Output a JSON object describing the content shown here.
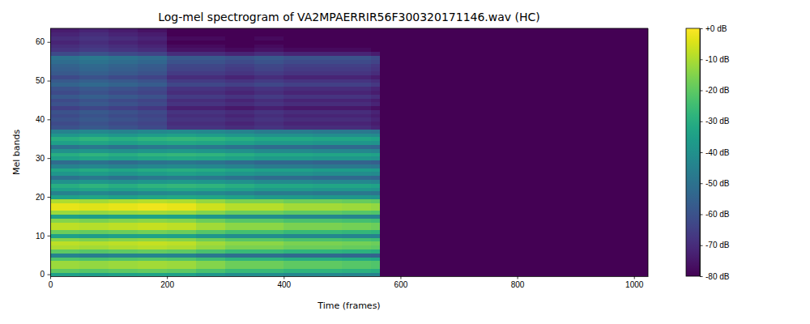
{
  "chart_data": {
    "type": "heatmap",
    "title": "Log-mel spectrogram of VA2MPAERRIR56F300320171146.wav (HC)",
    "x_label": "Time (frames)",
    "y_label": "Mel bands",
    "color": "viridis",
    "xlim": [
      0,
      1024
    ],
    "ylim": [
      -0.5,
      63.5
    ],
    "xticks": [
      0,
      200,
      400,
      600,
      800,
      1000
    ],
    "yticks": [
      0,
      10,
      20,
      30,
      40,
      50,
      60
    ],
    "x_edges": [
      0,
      50,
      100,
      150,
      200,
      250,
      300,
      350,
      400,
      450,
      500,
      550,
      565,
      1024
    ],
    "y_edges": [
      -0.5,
      0.5,
      1.5,
      2.5,
      3.5,
      4.5,
      5.5,
      6.5,
      7.5,
      8.5,
      9.5,
      10.5,
      11.5,
      12.5,
      13.5,
      14.5,
      15.5,
      16.5,
      17.5,
      18.5,
      19.5,
      20.5,
      21.5,
      22.5,
      23.5,
      24.5,
      25.5,
      26.5,
      27.5,
      28.5,
      29.5,
      30.5,
      31.5,
      32.5,
      33.5,
      34.5,
      35.5,
      36.5,
      37.5,
      38.5,
      39.5,
      40.5,
      41.5,
      42.5,
      43.5,
      44.5,
      45.5,
      46.5,
      47.5,
      48.5,
      49.5,
      50.5,
      51.5,
      52.5,
      53.5,
      54.5,
      55.5,
      56.5,
      57.5,
      58.5,
      59.5,
      60.5,
      61.5,
      62.5,
      63.5
    ],
    "cells": [
      [
        -35,
        -36,
        -35,
        -34,
        -35,
        -38,
        -41,
        -41,
        -43,
        -43,
        -44,
        -45,
        -80
      ],
      [
        -20,
        -21,
        -20,
        -19,
        -20,
        -23,
        -26,
        -26,
        -28,
        -28,
        -29,
        -30,
        -80
      ],
      [
        -12,
        -13,
        -12,
        -11,
        -12,
        -15,
        -18,
        -18,
        -20,
        -20,
        -21,
        -22,
        -80
      ],
      [
        -12,
        -13,
        -12,
        -11,
        -12,
        -15,
        -18,
        -18,
        -20,
        -20,
        -21,
        -22,
        -80
      ],
      [
        -22,
        -23,
        -22,
        -21,
        -22,
        -25,
        -28,
        -28,
        -30,
        -30,
        -31,
        -32,
        -80
      ],
      [
        -45,
        -46,
        -45,
        -44,
        -45,
        -48,
        -51,
        -51,
        -53,
        -53,
        -54,
        -55,
        -80
      ],
      [
        -20,
        -21,
        -20,
        -19,
        -20,
        -23,
        -26,
        -26,
        -28,
        -28,
        -29,
        -30,
        -80
      ],
      [
        -10,
        -11,
        -10,
        -9,
        -10,
        -13,
        -16,
        -16,
        -18,
        -18,
        -19,
        -20,
        -80
      ],
      [
        -8,
        -9,
        -8,
        -7,
        -8,
        -11,
        -14,
        -14,
        -16,
        -16,
        -17,
        -18,
        -80
      ],
      [
        -15,
        -16,
        -15,
        -14,
        -15,
        -18,
        -21,
        -21,
        -23,
        -23,
        -24,
        -25,
        -80
      ],
      [
        -35,
        -36,
        -35,
        -34,
        -35,
        -38,
        -41,
        -41,
        -43,
        -43,
        -44,
        -45,
        -80
      ],
      [
        -18,
        -19,
        -18,
        -17,
        -18,
        -21,
        -24,
        -24,
        -26,
        -26,
        -27,
        -28,
        -80
      ],
      [
        -8,
        -9,
        -8,
        -7,
        -8,
        -11,
        -14,
        -14,
        -16,
        -16,
        -17,
        -18,
        -80
      ],
      [
        -8,
        -9,
        -8,
        -7,
        -8,
        -11,
        -14,
        -14,
        -16,
        -16,
        -17,
        -18,
        -80
      ],
      [
        -15,
        -16,
        -15,
        -14,
        -15,
        -18,
        -21,
        -21,
        -23,
        -23,
        -24,
        -25,
        -80
      ],
      [
        -35,
        -36,
        -35,
        -34,
        -35,
        -38,
        -41,
        -41,
        -43,
        -43,
        -44,
        -45,
        -80
      ],
      [
        -12,
        -13,
        -12,
        -11,
        -12,
        -15,
        -18,
        -18,
        -20,
        -20,
        -21,
        -22,
        -80
      ],
      [
        -3,
        -4,
        -3,
        -2,
        -3,
        -6,
        -9,
        -9,
        -11,
        -11,
        -12,
        -13,
        -80
      ],
      [
        -3,
        -4,
        -3,
        -2,
        -3,
        -6,
        -9,
        -9,
        -11,
        -11,
        -12,
        -13,
        -80
      ],
      [
        -10,
        -11,
        -10,
        -9,
        -10,
        -13,
        -16,
        -16,
        -18,
        -18,
        -19,
        -20,
        -80
      ],
      [
        -35,
        -33,
        -35,
        -33,
        -32,
        -33,
        -35,
        -37,
        -37,
        -38,
        -38,
        -39,
        -80
      ],
      [
        -45,
        -43,
        -45,
        -43,
        -42,
        -43,
        -45,
        -47,
        -47,
        -48,
        -48,
        -49,
        -80
      ],
      [
        -35,
        -33,
        -35,
        -33,
        -32,
        -33,
        -35,
        -37,
        -37,
        -38,
        -38,
        -39,
        -80
      ],
      [
        -30,
        -28,
        -30,
        -28,
        -27,
        -28,
        -30,
        -32,
        -32,
        -33,
        -33,
        -34,
        -80
      ],
      [
        -40,
        -38,
        -40,
        -38,
        -37,
        -38,
        -40,
        -42,
        -42,
        -43,
        -43,
        -44,
        -80
      ],
      [
        -50,
        -48,
        -50,
        -48,
        -47,
        -48,
        -50,
        -52,
        -52,
        -53,
        -53,
        -54,
        -80
      ],
      [
        -38,
        -36,
        -38,
        -36,
        -35,
        -36,
        -38,
        -40,
        -40,
        -41,
        -41,
        -42,
        -80
      ],
      [
        -33,
        -31,
        -33,
        -31,
        -30,
        -31,
        -33,
        -35,
        -35,
        -36,
        -36,
        -37,
        -80
      ],
      [
        -45,
        -43,
        -45,
        -43,
        -42,
        -43,
        -45,
        -47,
        -47,
        -48,
        -48,
        -49,
        -80
      ],
      [
        -52,
        -50,
        -52,
        -50,
        -49,
        -50,
        -52,
        -54,
        -54,
        -55,
        -55,
        -56,
        -80
      ],
      [
        -35,
        -33,
        -35,
        -33,
        -32,
        -33,
        -35,
        -37,
        -37,
        -38,
        -38,
        -39,
        -80
      ],
      [
        -30,
        -28,
        -30,
        -28,
        -27,
        -28,
        -30,
        -32,
        -32,
        -33,
        -33,
        -34,
        -80
      ],
      [
        -40,
        -38,
        -40,
        -38,
        -37,
        -38,
        -40,
        -42,
        -42,
        -43,
        -43,
        -44,
        -80
      ],
      [
        -50,
        -48,
        -50,
        -48,
        -47,
        -48,
        -50,
        -52,
        -52,
        -53,
        -53,
        -54,
        -80
      ],
      [
        -35,
        -33,
        -35,
        -33,
        -32,
        -33,
        -35,
        -37,
        -37,
        -38,
        -38,
        -39,
        -80
      ],
      [
        -30,
        -28,
        -30,
        -28,
        -27,
        -28,
        -30,
        -32,
        -32,
        -33,
        -33,
        -34,
        -80
      ],
      [
        -38,
        -36,
        -38,
        -36,
        -35,
        -36,
        -38,
        -40,
        -40,
        -41,
        -41,
        -42,
        -80
      ],
      [
        -45,
        -43,
        -45,
        -43,
        -42,
        -43,
        -45,
        -47,
        -47,
        -48,
        -48,
        -49,
        -80
      ],
      [
        -60,
        -58,
        -60,
        -62,
        -68,
        -68,
        -70,
        -68,
        -70,
        -70,
        -70,
        -72,
        -80
      ],
      [
        -62,
        -60,
        -62,
        -64,
        -70,
        -70,
        -72,
        -70,
        -72,
        -72,
        -72,
        -74,
        -80
      ],
      [
        -60,
        -58,
        -60,
        -62,
        -68,
        -68,
        -70,
        -68,
        -70,
        -70,
        -70,
        -72,
        -80
      ],
      [
        -62,
        -60,
        -62,
        -64,
        -70,
        -70,
        -72,
        -70,
        -72,
        -72,
        -72,
        -74,
        -80
      ],
      [
        -60,
        -58,
        -60,
        -62,
        -68,
        -68,
        -70,
        -68,
        -70,
        -70,
        -70,
        -72,
        -80
      ],
      [
        -65,
        -63,
        -65,
        -67,
        -73,
        -73,
        -75,
        -73,
        -75,
        -75,
        -75,
        -77,
        -80
      ],
      [
        -60,
        -58,
        -60,
        -62,
        -68,
        -68,
        -70,
        -68,
        -70,
        -70,
        -70,
        -72,
        -80
      ],
      [
        -62,
        -60,
        -62,
        -64,
        -70,
        -70,
        -72,
        -70,
        -72,
        -72,
        -72,
        -74,
        -80
      ],
      [
        -58,
        -56,
        -58,
        -60,
        -66,
        -66,
        -68,
        -66,
        -68,
        -68,
        -68,
        -70,
        -80
      ],
      [
        -62,
        -60,
        -62,
        -64,
        -70,
        -70,
        -72,
        -70,
        -72,
        -72,
        -72,
        -74,
        -80
      ],
      [
        -60,
        -58,
        -60,
        -62,
        -68,
        -68,
        -70,
        -68,
        -70,
        -70,
        -70,
        -72,
        -80
      ],
      [
        -55,
        -53,
        -55,
        -57,
        -63,
        -63,
        -65,
        -63,
        -65,
        -65,
        -65,
        -67,
        -80
      ],
      [
        -58,
        -56,
        -58,
        -60,
        -66,
        -66,
        -68,
        -66,
        -68,
        -68,
        -68,
        -70,
        -80
      ],
      [
        -62,
        -60,
        -62,
        -64,
        -70,
        -70,
        -72,
        -70,
        -72,
        -72,
        -72,
        -74,
        -80
      ],
      [
        -58,
        -56,
        -58,
        -60,
        -66,
        -66,
        -68,
        -66,
        -68,
        -68,
        -68,
        -70,
        -80
      ],
      [
        -56,
        -54,
        -56,
        -58,
        -64,
        -64,
        -66,
        -64,
        -66,
        -66,
        -66,
        -68,
        -80
      ],
      [
        -55,
        -53,
        -55,
        -57,
        -63,
        -63,
        -65,
        -63,
        -65,
        -65,
        -65,
        -67,
        -80
      ],
      [
        -52,
        -50,
        -52,
        -54,
        -60,
        -60,
        -62,
        -60,
        -62,
        -62,
        -62,
        -64,
        -80
      ],
      [
        -50,
        -48,
        -50,
        -52,
        -58,
        -58,
        -60,
        -58,
        -60,
        -60,
        -60,
        -62,
        -80
      ],
      [
        -62,
        -60,
        -62,
        -64,
        -70,
        -70,
        -72,
        -70,
        -72,
        -72,
        -72,
        -74,
        -80
      ],
      [
        -68,
        -66,
        -68,
        -70,
        -76,
        -76,
        -78,
        -76,
        -78,
        -78,
        -78,
        -80,
        -80
      ],
      [
        -70,
        -68,
        -70,
        -72,
        -78,
        -78,
        -80,
        -78,
        -80,
        -80,
        -80,
        -80,
        -80
      ],
      [
        -72,
        -70,
        -72,
        -74,
        -80,
        -80,
        -80,
        -80,
        -80,
        -80,
        -80,
        -80,
        -80
      ],
      [
        -70,
        -68,
        -70,
        -72,
        -78,
        -78,
        -80,
        -78,
        -80,
        -80,
        -80,
        -80,
        -80
      ],
      [
        -72,
        -70,
        -72,
        -74,
        -80,
        -80,
        -80,
        -80,
        -80,
        -80,
        -80,
        -80,
        -80
      ],
      [
        -74,
        -72,
        -74,
        -76,
        -80,
        -80,
        -80,
        -80,
        -80,
        -80,
        -80,
        -80,
        -80
      ]
    ],
    "colorbar": {
      "range": [
        -80,
        0
      ],
      "ticks": [
        {
          "value": 0,
          "label": "+0 dB"
        },
        {
          "value": -10,
          "label": "-10 dB"
        },
        {
          "value": -20,
          "label": "-20 dB"
        },
        {
          "value": -30,
          "label": "-30 dB"
        },
        {
          "value": -40,
          "label": "-40 dB"
        },
        {
          "value": -50,
          "label": "-50 dB"
        },
        {
          "value": -60,
          "label": "-60 dB"
        },
        {
          "value": -70,
          "label": "-70 dB"
        },
        {
          "value": -80,
          "label": "-80 dB"
        }
      ]
    }
  }
}
